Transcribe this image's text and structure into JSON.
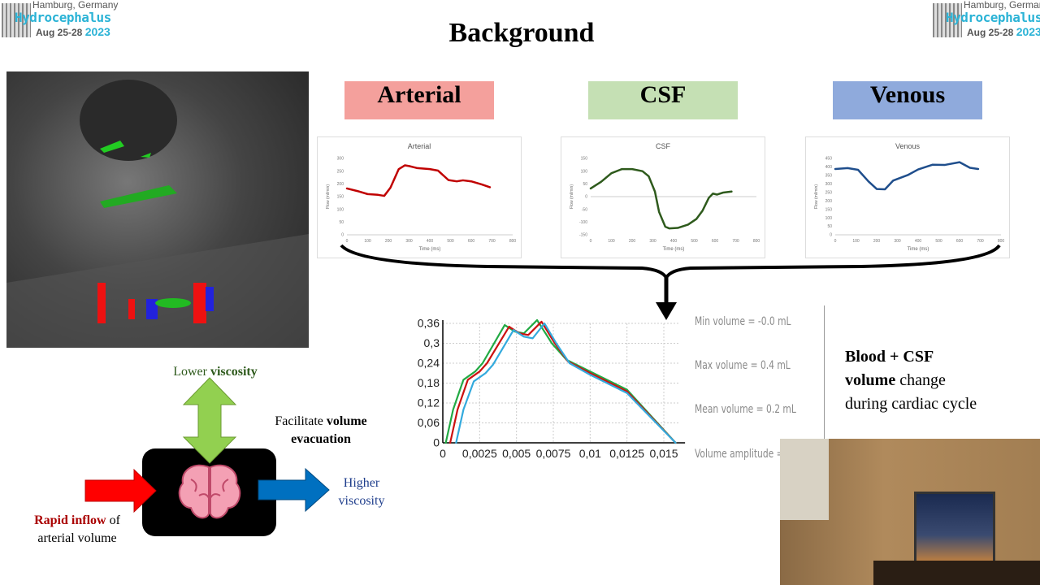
{
  "slide": {
    "title": "Background"
  },
  "logo": {
    "city": "Hamburg, Germany",
    "name": "Hydrocephalus",
    "dates": "Aug 25-28",
    "year": "2023"
  },
  "categories": [
    {
      "label": "Arterial",
      "color": "#f4a09c"
    },
    {
      "label": "CSF",
      "color": "#c5e0b4"
    },
    {
      "label": "Venous",
      "color": "#8faadc"
    }
  ],
  "chart_data": [
    {
      "type": "line",
      "title": "Arterial",
      "xlabel": "Time (ms)",
      "ylabel": "Flow (ml/min)",
      "xlim": [
        0,
        800
      ],
      "ylim": [
        0,
        300
      ],
      "xticks": [
        0,
        100,
        200,
        300,
        400,
        500,
        600,
        700,
        800
      ],
      "yticks": [
        0,
        50,
        100,
        150,
        200,
        250,
        300
      ],
      "color": "#c00000",
      "series": [
        {
          "x": [
            0,
            50,
            100,
            150,
            180,
            210,
            250,
            280,
            300,
            340,
            400,
            440,
            490,
            530,
            560,
            600,
            650,
            690
          ],
          "y": [
            182,
            172,
            160,
            157,
            153,
            185,
            258,
            273,
            270,
            262,
            258,
            252,
            215,
            210,
            214,
            210,
            198,
            187
          ]
        }
      ]
    },
    {
      "type": "line",
      "title": "CSF",
      "xlabel": "Time (ms)",
      "ylabel": "Flow (ml/min)",
      "xlim": [
        0,
        800
      ],
      "ylim": [
        -150,
        150
      ],
      "xticks": [
        0,
        100,
        200,
        300,
        400,
        500,
        600,
        700,
        800
      ],
      "yticks": [
        -150,
        -100,
        -50,
        0,
        50,
        100,
        150
      ],
      "color": "#2e5a1c",
      "series": [
        {
          "x": [
            0,
            50,
            100,
            150,
            200,
            250,
            280,
            310,
            330,
            360,
            380,
            420,
            470,
            510,
            540,
            570,
            590,
            610,
            640,
            680
          ],
          "y": [
            32,
            58,
            92,
            108,
            108,
            100,
            80,
            20,
            -60,
            -118,
            -125,
            -123,
            -110,
            -88,
            -55,
            -5,
            12,
            8,
            16,
            20
          ]
        }
      ]
    },
    {
      "type": "line",
      "title": "Venous",
      "xlabel": "Time (ms)",
      "ylabel": "Flow (ml/min)",
      "xlim": [
        0,
        800
      ],
      "ylim": [
        0,
        450
      ],
      "xticks": [
        0,
        100,
        200,
        300,
        400,
        500,
        600,
        700,
        800
      ],
      "yticks": [
        0,
        50,
        100,
        150,
        200,
        250,
        300,
        350,
        400,
        450
      ],
      "color": "#1f4e8c",
      "series": [
        {
          "x": [
            0,
            60,
            110,
            160,
            200,
            240,
            280,
            350,
            400,
            470,
            530,
            600,
            650,
            690
          ],
          "y": [
            388,
            393,
            383,
            315,
            270,
            268,
            320,
            352,
            385,
            413,
            412,
            428,
            395,
            388
          ]
        }
      ]
    },
    {
      "type": "line",
      "xlim": [
        0,
        0.016
      ],
      "ylim": [
        0,
        0.36
      ],
      "grid": true,
      "xticks": [
        "0",
        "0,0025",
        "0,005",
        "0,0075",
        "0,01",
        "0,0125",
        "0,015"
      ],
      "xtick_values": [
        0,
        0.0025,
        0.005,
        0.0075,
        0.01,
        0.0125,
        0.015
      ],
      "yticks": [
        "0",
        "0,06",
        "0,12",
        "0,18",
        "0,24",
        "0,3",
        "0,36"
      ],
      "ytick_values": [
        0,
        0.06,
        0.12,
        0.18,
        0.24,
        0.3,
        0.36
      ],
      "series": [
        {
          "color": "#22aa44",
          "x": [
            0.0002,
            0.0007,
            0.0014,
            0.0022,
            0.0027,
            0.0042,
            0.0049,
            0.0055,
            0.0064,
            0.0074,
            0.0084,
            0.01,
            0.0125,
            0.0158
          ],
          "y": [
            0,
            0.1,
            0.19,
            0.215,
            0.24,
            0.355,
            0.335,
            0.33,
            0.37,
            0.3,
            0.25,
            0.215,
            0.16,
            0
          ]
        },
        {
          "color": "#cc1111",
          "x": [
            0.0005,
            0.001,
            0.0017,
            0.0025,
            0.003,
            0.0045,
            0.0052,
            0.0058,
            0.0067,
            0.0076,
            0.0085,
            0.01,
            0.0125,
            0.0158
          ],
          "y": [
            0,
            0.1,
            0.19,
            0.215,
            0.24,
            0.35,
            0.33,
            0.325,
            0.365,
            0.3,
            0.245,
            0.21,
            0.155,
            0
          ]
        },
        {
          "color": "#33aadd",
          "x": [
            0.0009,
            0.0014,
            0.0021,
            0.0029,
            0.0034,
            0.0048,
            0.0055,
            0.0061,
            0.0069,
            0.0077,
            0.0086,
            0.01,
            0.0125,
            0.0158
          ],
          "y": [
            0,
            0.1,
            0.185,
            0.21,
            0.235,
            0.34,
            0.32,
            0.315,
            0.36,
            0.3,
            0.24,
            0.205,
            0.15,
            0
          ]
        }
      ]
    }
  ],
  "volume_stats": {
    "min": "Min volume = -0.0 mL",
    "max": "Max volume = 0.4 mL",
    "mean": "Mean volume = 0.2 mL",
    "amplitude": "Volume amplitude ="
  },
  "summary": {
    "bold1": "Blood + CSF",
    "bold2": "volume",
    "rest2": " change",
    "line3": "during cardiac cycle"
  },
  "diagram": {
    "lower": "Lower ",
    "lower_b": "viscosity",
    "facilitate": "Facilitate ",
    "facilitate_b": "volume",
    "evacuation": "evacuation",
    "higher1": "Higher",
    "higher2": "viscosity",
    "rapid_b": "Rapid inflow",
    "rapid": " of",
    "arterial": "arterial volume",
    "colors": {
      "inflow": "#ff0000",
      "outflow": "#0070c0",
      "up": "#92d050",
      "brain": "#f4a0b4"
    }
  }
}
